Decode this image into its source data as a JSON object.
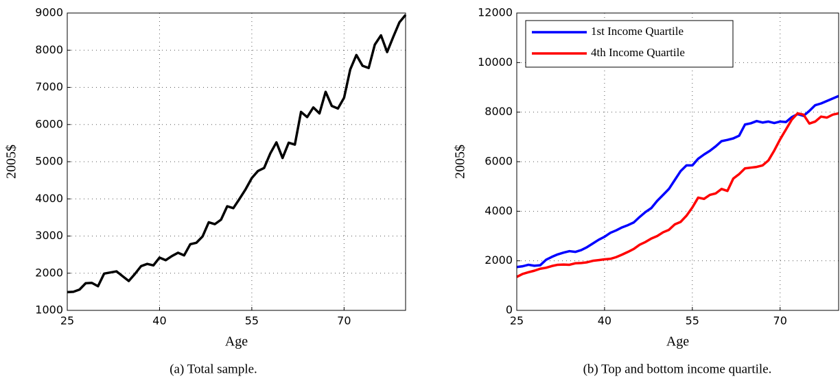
{
  "chart_data": [
    {
      "type": "line",
      "ylabel": "2005$",
      "xlabel": "Age",
      "caption": "(a)  Total sample.",
      "color": "#000000",
      "grid": true,
      "x": [
        25,
        26,
        27,
        28,
        29,
        30,
        31,
        32,
        33,
        34,
        35,
        36,
        37,
        38,
        39,
        40,
        41,
        42,
        43,
        44,
        45,
        46,
        47,
        48,
        49,
        50,
        51,
        52,
        53,
        54,
        55,
        56,
        57,
        58,
        59,
        60,
        61,
        62,
        63,
        64,
        65,
        66,
        67,
        68,
        69,
        70,
        71,
        72,
        73,
        74,
        75,
        76,
        77,
        78,
        79,
        80
      ],
      "values": [
        1490,
        1500,
        1560,
        1730,
        1740,
        1650,
        1990,
        2020,
        2050,
        1920,
        1790,
        1980,
        2190,
        2250,
        2210,
        2420,
        2350,
        2460,
        2550,
        2480,
        2780,
        2820,
        2990,
        3370,
        3320,
        3440,
        3800,
        3750,
        4000,
        4260,
        4560,
        4750,
        4830,
        5220,
        5520,
        5100,
        5510,
        5460,
        6340,
        6200,
        6460,
        6300,
        6880,
        6500,
        6430,
        6720,
        7480,
        7870,
        7580,
        7520,
        8150,
        8400,
        7950,
        8360,
        8750,
        8950
      ],
      "xlim": [
        25,
        80
      ],
      "xticks": [
        25,
        40,
        55,
        70
      ],
      "ylim": [
        1000,
        9000
      ],
      "yticks": [
        1000,
        2000,
        3000,
        4000,
        5000,
        6000,
        7000,
        8000,
        9000
      ]
    },
    {
      "type": "line",
      "ylabel": "2005$",
      "xlabel": "Age",
      "caption": "(b)  Top and bottom income quartile.",
      "grid": true,
      "legend": "upper-left",
      "x": [
        25,
        26,
        27,
        28,
        29,
        30,
        31,
        32,
        33,
        34,
        35,
        36,
        37,
        38,
        39,
        40,
        41,
        42,
        43,
        44,
        45,
        46,
        47,
        48,
        49,
        50,
        51,
        52,
        53,
        54,
        55,
        56,
        57,
        58,
        59,
        60,
        61,
        62,
        63,
        64,
        65,
        66,
        67,
        68,
        69,
        70,
        71,
        72,
        73,
        74,
        75,
        76,
        77,
        78,
        79,
        80
      ],
      "series": [
        {
          "name": "1st Income Quartile",
          "color": "#0000ff",
          "values": [
            1750,
            1780,
            1840,
            1800,
            1820,
            2040,
            2160,
            2260,
            2330,
            2390,
            2360,
            2430,
            2550,
            2700,
            2850,
            2970,
            3130,
            3230,
            3350,
            3440,
            3550,
            3770,
            3970,
            4130,
            4420,
            4660,
            4900,
            5260,
            5620,
            5850,
            5850,
            6120,
            6290,
            6440,
            6620,
            6830,
            6880,
            6940,
            7050,
            7500,
            7550,
            7640,
            7580,
            7620,
            7560,
            7620,
            7600,
            7800,
            7920,
            7850,
            8050,
            8280,
            8350,
            8450,
            8550,
            8650
          ]
        },
        {
          "name": "4th Income Quartile",
          "color": "#ff0000",
          "values": [
            1350,
            1470,
            1540,
            1600,
            1680,
            1720,
            1790,
            1840,
            1850,
            1840,
            1900,
            1910,
            1940,
            2000,
            2030,
            2060,
            2080,
            2150,
            2250,
            2360,
            2480,
            2650,
            2760,
            2900,
            3000,
            3150,
            3250,
            3470,
            3570,
            3820,
            4150,
            4550,
            4500,
            4660,
            4720,
            4900,
            4820,
            5320,
            5500,
            5730,
            5760,
            5790,
            5850,
            6050,
            6450,
            6900,
            7300,
            7700,
            7950,
            7900,
            7540,
            7620,
            7820,
            7780,
            7900,
            7950
          ]
        }
      ],
      "xlim": [
        25,
        80
      ],
      "xticks": [
        25,
        40,
        55,
        70
      ],
      "ylim": [
        0,
        12000
      ],
      "yticks": [
        0,
        2000,
        4000,
        6000,
        8000,
        10000,
        12000
      ]
    }
  ]
}
